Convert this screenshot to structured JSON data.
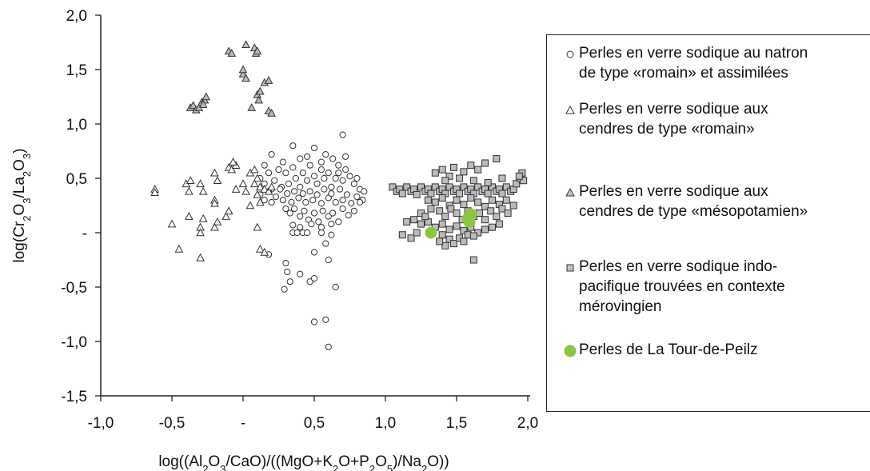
{
  "chart_data": {
    "type": "scatter",
    "title": "",
    "xlabel": "log((Al2O3/CaO)/((MgO+K2O+P2O5)/Na2O))",
    "ylabel": "log(Cr2O3/La2O3)",
    "xlim": [
      -1.0,
      2.0
    ],
    "ylim": [
      -1.5,
      2.0
    ],
    "x_ticks": [
      -1.0,
      -0.5,
      0,
      0.5,
      1.0,
      1.5,
      2.0
    ],
    "x_tick_labels": [
      "-1,0",
      "-0,5",
      "-",
      "0,5",
      "1,0",
      "1,5",
      "2,0"
    ],
    "y_ticks": [
      2.0,
      1.5,
      1.0,
      0.5,
      0,
      -0.5,
      -1.0,
      -1.5
    ],
    "y_tick_labels": [
      "2,0",
      "1,5",
      "1,0",
      "0,5",
      "-",
      "-0,5",
      "-1,0",
      "-1,5"
    ],
    "grid": false,
    "legend_position": "right",
    "series": [
      {
        "name": "Perles en verre sodique au natron\nde type «romain» et assimilées",
        "marker": "circle-open",
        "color": "#333333",
        "points": [
          [
            0.15,
            0.62
          ],
          [
            0.2,
            0.72
          ],
          [
            0.28,
            0.65
          ],
          [
            0.35,
            0.8
          ],
          [
            0.4,
            0.68
          ],
          [
            0.45,
            0.7
          ],
          [
            0.5,
            0.78
          ],
          [
            0.55,
            0.65
          ],
          [
            0.58,
            0.72
          ],
          [
            0.63,
            0.68
          ],
          [
            0.67,
            0.62
          ],
          [
            0.7,
            0.9
          ],
          [
            0.72,
            0.7
          ],
          [
            0.12,
            0.5
          ],
          [
            0.15,
            0.45
          ],
          [
            0.18,
            0.55
          ],
          [
            0.2,
            0.4
          ],
          [
            0.22,
            0.48
          ],
          [
            0.25,
            0.58
          ],
          [
            0.27,
            0.42
          ],
          [
            0.3,
            0.55
          ],
          [
            0.32,
            0.45
          ],
          [
            0.35,
            0.6
          ],
          [
            0.37,
            0.5
          ],
          [
            0.4,
            0.42
          ],
          [
            0.42,
            0.55
          ],
          [
            0.45,
            0.48
          ],
          [
            0.47,
            0.62
          ],
          [
            0.5,
            0.52
          ],
          [
            0.52,
            0.45
          ],
          [
            0.55,
            0.58
          ],
          [
            0.57,
            0.5
          ],
          [
            0.6,
            0.55
          ],
          [
            0.62,
            0.42
          ],
          [
            0.65,
            0.5
          ],
          [
            0.67,
            0.55
          ],
          [
            0.7,
            0.48
          ],
          [
            0.72,
            0.58
          ],
          [
            0.75,
            0.52
          ],
          [
            0.78,
            0.45
          ],
          [
            0.8,
            0.5
          ],
          [
            0.82,
            0.4
          ],
          [
            0.85,
            0.38
          ],
          [
            0.12,
            0.35
          ],
          [
            0.15,
            0.3
          ],
          [
            0.18,
            0.38
          ],
          [
            0.2,
            0.28
          ],
          [
            0.23,
            0.33
          ],
          [
            0.26,
            0.4
          ],
          [
            0.28,
            0.3
          ],
          [
            0.31,
            0.36
          ],
          [
            0.34,
            0.28
          ],
          [
            0.36,
            0.38
          ],
          [
            0.39,
            0.32
          ],
          [
            0.42,
            0.36
          ],
          [
            0.44,
            0.28
          ],
          [
            0.47,
            0.38
          ],
          [
            0.49,
            0.3
          ],
          [
            0.52,
            0.35
          ],
          [
            0.55,
            0.27
          ],
          [
            0.57,
            0.4
          ],
          [
            0.6,
            0.32
          ],
          [
            0.62,
            0.36
          ],
          [
            0.65,
            0.28
          ],
          [
            0.68,
            0.4
          ],
          [
            0.7,
            0.3
          ],
          [
            0.73,
            0.35
          ],
          [
            0.76,
            0.27
          ],
          [
            0.8,
            0.33
          ],
          [
            0.84,
            0.3
          ],
          [
            0.3,
            0.22
          ],
          [
            0.33,
            0.18
          ],
          [
            0.36,
            0.22
          ],
          [
            0.4,
            0.15
          ],
          [
            0.43,
            0.2
          ],
          [
            0.46,
            0.12
          ],
          [
            0.5,
            0.18
          ],
          [
            0.53,
            0.1
          ],
          [
            0.56,
            0.2
          ],
          [
            0.6,
            0.15
          ],
          [
            0.63,
            0.18
          ],
          [
            0.67,
            0.1
          ],
          [
            0.7,
            0.22
          ],
          [
            0.74,
            0.16
          ],
          [
            0.78,
            0.2
          ],
          [
            0.82,
            0.28
          ],
          [
            0.35,
            0.07
          ],
          [
            0.4,
            0.05
          ],
          [
            0.48,
            0.08
          ],
          [
            0.55,
            0.05
          ],
          [
            0.62,
            0.08
          ],
          [
            0.35,
            0.0
          ],
          [
            0.38,
            0.0
          ],
          [
            0.42,
            0.0
          ],
          [
            0.45,
            0.0
          ],
          [
            0.55,
            0.0
          ],
          [
            0.62,
            -0.02
          ],
          [
            0.3,
            -0.28
          ],
          [
            0.31,
            -0.36
          ],
          [
            0.33,
            -0.45
          ],
          [
            0.29,
            -0.52
          ],
          [
            0.4,
            -0.38
          ],
          [
            0.47,
            -0.45
          ],
          [
            0.5,
            -0.42
          ],
          [
            0.5,
            -0.18
          ],
          [
            0.58,
            -0.1
          ],
          [
            0.6,
            -0.25
          ],
          [
            0.65,
            -0.5
          ],
          [
            0.5,
            -0.82
          ],
          [
            0.58,
            -0.8
          ],
          [
            0.6,
            -1.05
          ],
          [
            0.18,
            -0.2
          ]
        ]
      },
      {
        "name": "Perles en verre sodique aux\ncendres de type «romain»",
        "marker": "triangle-open",
        "color": "#333333",
        "points": [
          [
            -0.62,
            0.4
          ],
          [
            -0.62,
            0.37
          ],
          [
            -0.4,
            0.45
          ],
          [
            -0.37,
            0.48
          ],
          [
            -0.38,
            0.38
          ],
          [
            -0.3,
            0.45
          ],
          [
            -0.28,
            0.38
          ],
          [
            -0.2,
            0.55
          ],
          [
            -0.18,
            0.48
          ],
          [
            -0.1,
            0.6
          ],
          [
            -0.08,
            0.58
          ],
          [
            -0.05,
            0.62
          ],
          [
            -0.07,
            0.65
          ],
          [
            0.05,
            0.55
          ],
          [
            0.08,
            0.58
          ],
          [
            0.1,
            0.5
          ],
          [
            -0.2,
            0.3
          ],
          [
            -0.2,
            0.27
          ],
          [
            -0.05,
            0.4
          ],
          [
            0.0,
            0.45
          ],
          [
            0.02,
            0.38
          ],
          [
            0.1,
            0.35
          ],
          [
            0.12,
            0.42
          ],
          [
            -0.38,
            0.15
          ],
          [
            -0.28,
            0.13
          ],
          [
            -0.18,
            0.1
          ],
          [
            -0.12,
            0.15
          ],
          [
            -0.1,
            0.2
          ],
          [
            0.05,
            0.25
          ],
          [
            0.12,
            0.28
          ],
          [
            -0.5,
            0.08
          ],
          [
            -0.3,
            0.05
          ],
          [
            -0.2,
            0.05
          ],
          [
            0.1,
            0.05
          ],
          [
            -0.45,
            -0.15
          ],
          [
            -0.3,
            0.0
          ],
          [
            0.12,
            -0.15
          ],
          [
            0.15,
            -0.18
          ],
          [
            -0.3,
            -0.23
          ],
          [
            0.08,
            0.45
          ],
          [
            0.15,
            0.4
          ],
          [
            0.18,
            0.38
          ],
          [
            0.2,
            0.42
          ]
        ]
      },
      {
        "name": "Perles en verre sodique aux\ncendres de type «mésopotamien»",
        "marker": "triangle-filled",
        "color": "#bbbbbb",
        "points": [
          [
            -0.37,
            1.15
          ],
          [
            -0.35,
            1.17
          ],
          [
            -0.33,
            1.13
          ],
          [
            -0.31,
            1.15
          ],
          [
            -0.29,
            1.2
          ],
          [
            -0.27,
            1.22
          ],
          [
            -0.26,
            1.25
          ],
          [
            -0.28,
            1.18
          ],
          [
            -0.1,
            1.67
          ],
          [
            -0.08,
            1.65
          ],
          [
            0.0,
            1.46
          ],
          [
            0.02,
            1.42
          ],
          [
            0.0,
            1.5
          ],
          [
            0.02,
            1.73
          ],
          [
            0.08,
            1.7
          ],
          [
            0.09,
            1.65
          ],
          [
            0.1,
            1.67
          ],
          [
            0.1,
            1.27
          ],
          [
            0.12,
            1.3
          ],
          [
            0.11,
            1.22
          ],
          [
            0.15,
            1.38
          ],
          [
            0.18,
            1.4
          ],
          [
            0.18,
            1.12
          ],
          [
            0.2,
            1.1
          ],
          [
            0.06,
            1.15
          ]
        ]
      },
      {
        "name": "Perles en verre sodique indo-\npacifique trouvées en contexte\nmérovingien",
        "marker": "square-filled",
        "color": "#bbbbbb",
        "points": [
          [
            1.05,
            0.42
          ],
          [
            1.08,
            0.38
          ],
          [
            1.1,
            0.4
          ],
          [
            1.12,
            0.36
          ],
          [
            1.15,
            0.42
          ],
          [
            1.18,
            0.38
          ],
          [
            1.2,
            0.4
          ],
          [
            1.22,
            0.35
          ],
          [
            1.25,
            0.42
          ],
          [
            1.28,
            0.38
          ],
          [
            1.3,
            0.4
          ],
          [
            1.32,
            0.36
          ],
          [
            1.35,
            0.42
          ],
          [
            1.38,
            0.38
          ],
          [
            1.4,
            0.4
          ],
          [
            1.42,
            0.36
          ],
          [
            1.45,
            0.42
          ],
          [
            1.48,
            0.38
          ],
          [
            1.5,
            0.4
          ],
          [
            1.52,
            0.36
          ],
          [
            1.55,
            0.42
          ],
          [
            1.58,
            0.38
          ],
          [
            1.6,
            0.4
          ],
          [
            1.62,
            0.36
          ],
          [
            1.65,
            0.42
          ],
          [
            1.68,
            0.38
          ],
          [
            1.7,
            0.4
          ],
          [
            1.72,
            0.36
          ],
          [
            1.75,
            0.42
          ],
          [
            1.78,
            0.38
          ],
          [
            1.8,
            0.4
          ],
          [
            1.82,
            0.36
          ],
          [
            1.85,
            0.42
          ],
          [
            1.88,
            0.38
          ],
          [
            1.9,
            0.4
          ],
          [
            1.92,
            0.45
          ],
          [
            1.95,
            0.5
          ],
          [
            1.96,
            0.55
          ],
          [
            1.97,
            0.48
          ],
          [
            1.94,
            0.52
          ],
          [
            1.35,
            0.55
          ],
          [
            1.4,
            0.58
          ],
          [
            1.45,
            0.52
          ],
          [
            1.48,
            0.6
          ],
          [
            1.55,
            0.56
          ],
          [
            1.6,
            0.62
          ],
          [
            1.65,
            0.58
          ],
          [
            1.7,
            0.64
          ],
          [
            1.78,
            0.68
          ],
          [
            1.42,
            0.48
          ],
          [
            1.52,
            0.5
          ],
          [
            1.62,
            0.48
          ],
          [
            1.72,
            0.46
          ],
          [
            1.82,
            0.5
          ],
          [
            1.3,
            0.3
          ],
          [
            1.35,
            0.28
          ],
          [
            1.4,
            0.32
          ],
          [
            1.45,
            0.25
          ],
          [
            1.5,
            0.3
          ],
          [
            1.55,
            0.26
          ],
          [
            1.6,
            0.32
          ],
          [
            1.65,
            0.28
          ],
          [
            1.7,
            0.24
          ],
          [
            1.75,
            0.3
          ],
          [
            1.8,
            0.26
          ],
          [
            1.85,
            0.3
          ],
          [
            1.9,
            0.25
          ],
          [
            1.38,
            0.2
          ],
          [
            1.42,
            0.15
          ],
          [
            1.46,
            0.22
          ],
          [
            1.5,
            0.18
          ],
          [
            1.54,
            0.12
          ],
          [
            1.58,
            0.2
          ],
          [
            1.62,
            0.15
          ],
          [
            1.66,
            0.18
          ],
          [
            1.7,
            0.12
          ],
          [
            1.74,
            0.2
          ],
          [
            1.78,
            0.15
          ],
          [
            1.82,
            0.22
          ],
          [
            1.86,
            0.18
          ],
          [
            1.2,
            0.12
          ],
          [
            1.25,
            0.08
          ],
          [
            1.3,
            0.1
          ],
          [
            1.35,
            0.05
          ],
          [
            1.4,
            0.08
          ],
          [
            1.45,
            0.03
          ],
          [
            1.5,
            0.06
          ],
          [
            1.55,
            0.02
          ],
          [
            1.6,
            0.05
          ],
          [
            1.65,
            0.0
          ],
          [
            1.7,
            0.03
          ],
          [
            1.75,
            0.05
          ],
          [
            1.8,
            0.08
          ],
          [
            1.15,
            0.1
          ],
          [
            1.12,
            -0.02
          ],
          [
            1.18,
            -0.05
          ],
          [
            1.22,
            0.0
          ],
          [
            1.4,
            -0.02
          ],
          [
            1.45,
            -0.06
          ],
          [
            1.48,
            -0.1
          ],
          [
            1.52,
            -0.05
          ],
          [
            1.55,
            -0.08
          ],
          [
            1.58,
            -0.02
          ],
          [
            1.62,
            -0.03
          ],
          [
            1.42,
            -0.12
          ],
          [
            1.38,
            -0.08
          ],
          [
            1.62,
            -0.25
          ],
          [
            1.25,
            0.18
          ],
          [
            1.28,
            0.15
          ],
          [
            1.32,
            0.22
          ]
        ]
      },
      {
        "name": "Perles de La Tour-de-Peilz",
        "marker": "circle-filled",
        "color": "#8cc63f",
        "points": [
          [
            1.32,
            0.0
          ],
          [
            1.58,
            0.13
          ],
          [
            1.6,
            0.17
          ],
          [
            1.59,
            0.1
          ]
        ]
      }
    ]
  }
}
